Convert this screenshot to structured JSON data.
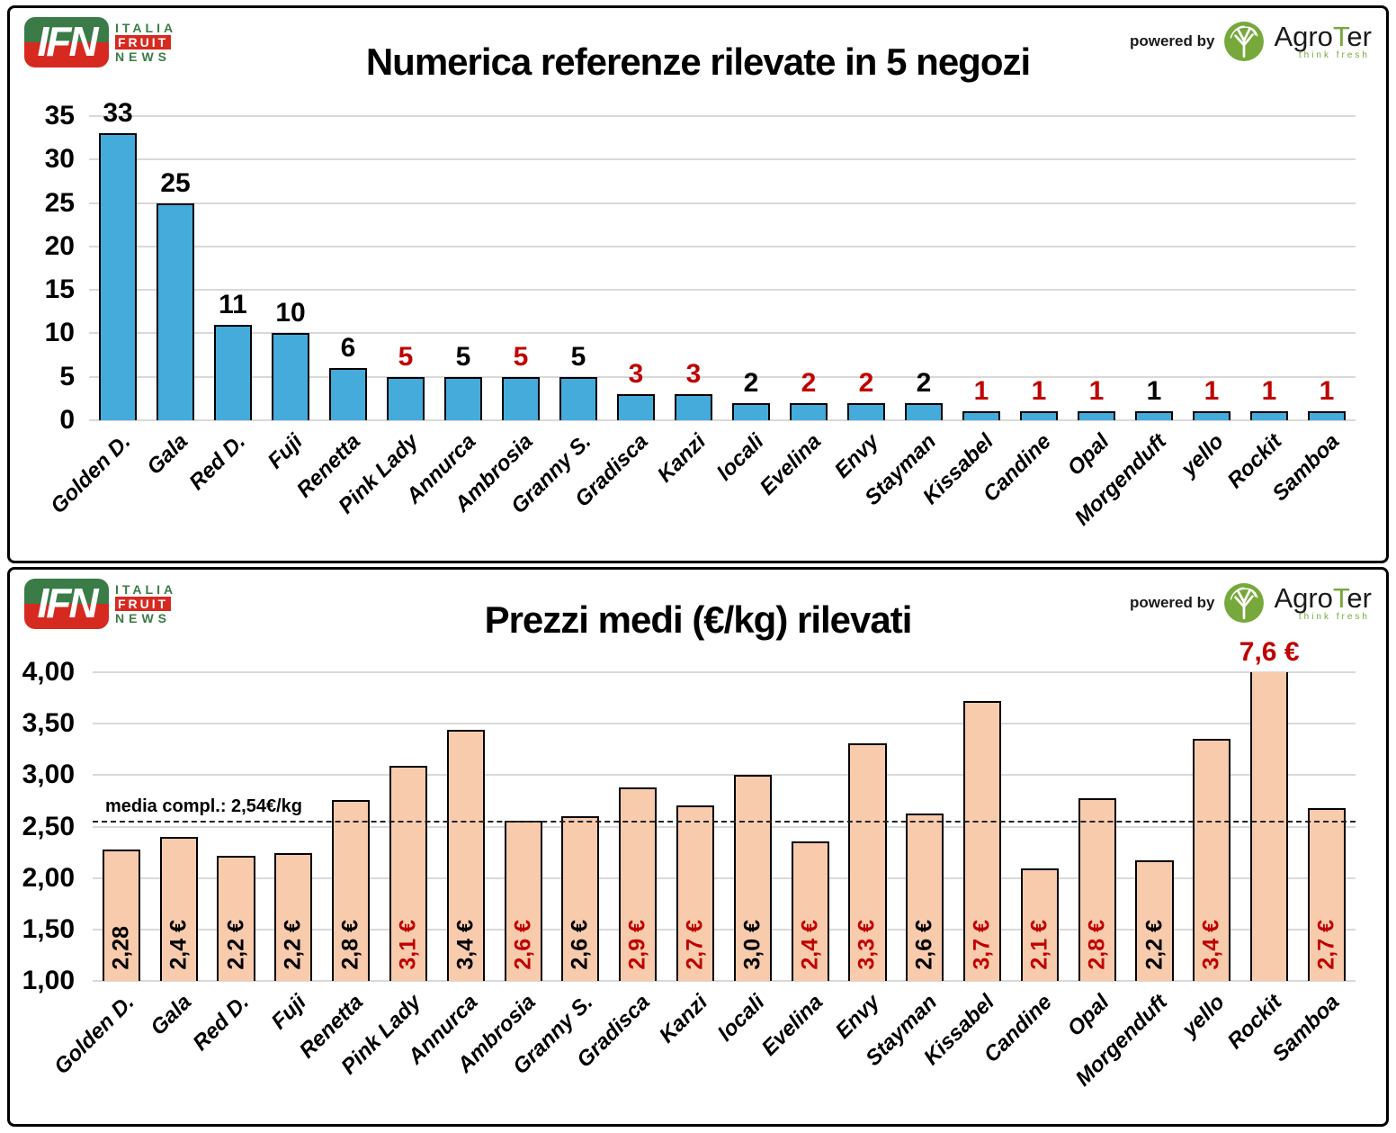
{
  "header": {
    "ifn_logo": {
      "monogram": "IFN",
      "line1": "ITALIA",
      "line2": "FRUIT",
      "line3": "NEWS"
    },
    "powered_by": "powered by",
    "agroter": {
      "prefix": "Agro",
      "accent": "T",
      "suffix": "er",
      "tagline": "think fresh"
    }
  },
  "colors": {
    "count_bar": "#45ABDB",
    "price_bar": "#F8CBAD",
    "bar_border": "#000000",
    "red_label": "#C00000",
    "black_label": "#000000",
    "gridline": "#D9D9D9",
    "ifn_green": "#3A7B47",
    "ifn_red": "#D62A21",
    "agroter_green": "#76A83B"
  },
  "chart_data": [
    {
      "type": "bar",
      "title": "Numerica referenze rilevate in 5 negozi",
      "xlabel": "",
      "ylabel": "",
      "ylim": [
        0,
        35
      ],
      "ytick_values": [
        0,
        5,
        10,
        15,
        20,
        25,
        30,
        35
      ],
      "ytick_labels": [
        "0",
        "5",
        "10",
        "15",
        "20",
        "25",
        "30",
        "35"
      ],
      "grid": true,
      "legend": "none",
      "bar_color": "#45ABDB",
      "label_position": "outside",
      "categories": [
        "Golden D.",
        "Gala",
        "Red D.",
        "Fuji",
        "Renetta",
        "Pink Lady",
        "Annurca",
        "Ambrosia",
        "Granny S.",
        "Gradisca",
        "Kanzi",
        "locali",
        "Evelina",
        "Envy",
        "Stayman",
        "Kissabel",
        "Candine",
        "Opal",
        "Morgenduft",
        "yello",
        "Rockit",
        "Samboa"
      ],
      "bars": [
        {
          "category": "Golden D.",
          "value": 33,
          "label": "33",
          "highlight": false
        },
        {
          "category": "Gala",
          "value": 25,
          "label": "25",
          "highlight": false
        },
        {
          "category": "Red D.",
          "value": 11,
          "label": "11",
          "highlight": false
        },
        {
          "category": "Fuji",
          "value": 10,
          "label": "10",
          "highlight": false
        },
        {
          "category": "Renetta",
          "value": 6,
          "label": "6",
          "highlight": false
        },
        {
          "category": "Pink Lady",
          "value": 5,
          "label": "5",
          "highlight": true
        },
        {
          "category": "Annurca",
          "value": 5,
          "label": "5",
          "highlight": false
        },
        {
          "category": "Ambrosia",
          "value": 5,
          "label": "5",
          "highlight": true
        },
        {
          "category": "Granny S.",
          "value": 5,
          "label": "5",
          "highlight": false
        },
        {
          "category": "Gradisca",
          "value": 3,
          "label": "3",
          "highlight": true
        },
        {
          "category": "Kanzi",
          "value": 3,
          "label": "3",
          "highlight": true
        },
        {
          "category": "locali",
          "value": 2,
          "label": "2",
          "highlight": false
        },
        {
          "category": "Evelina",
          "value": 2,
          "label": "2",
          "highlight": true
        },
        {
          "category": "Envy",
          "value": 2,
          "label": "2",
          "highlight": true
        },
        {
          "category": "Stayman",
          "value": 2,
          "label": "2",
          "highlight": false
        },
        {
          "category": "Kissabel",
          "value": 1,
          "label": "1",
          "highlight": true
        },
        {
          "category": "Candine",
          "value": 1,
          "label": "1",
          "highlight": true
        },
        {
          "category": "Opal",
          "value": 1,
          "label": "1",
          "highlight": true
        },
        {
          "category": "Morgenduft",
          "value": 1,
          "label": "1",
          "highlight": false
        },
        {
          "category": "yello",
          "value": 1,
          "label": "1",
          "highlight": true
        },
        {
          "category": "Rockit",
          "value": 1,
          "label": "1",
          "highlight": true
        },
        {
          "category": "Samboa",
          "value": 1,
          "label": "1",
          "highlight": true
        }
      ]
    },
    {
      "type": "bar",
      "title": "Prezzi medi (€/kg) rilevati",
      "xlabel": "",
      "ylabel": "",
      "ylim": [
        1,
        4
      ],
      "ytick_values": [
        1,
        1.5,
        2,
        2.5,
        3,
        3.5,
        4
      ],
      "ytick_labels": [
        "1,00",
        "1,50",
        "2,00",
        "2,50",
        "3,00",
        "3,50",
        "4,00"
      ],
      "grid": true,
      "legend": "none",
      "bar_color": "#F8CBAD",
      "label_position": "inside",
      "reference_line": {
        "value": 2.54,
        "label": "media compl.: 2,54€/kg"
      },
      "categories": [
        "Golden D.",
        "Gala",
        "Red D.",
        "Fuji",
        "Renetta",
        "Pink Lady",
        "Annurca",
        "Ambrosia",
        "Granny S.",
        "Gradisca",
        "Kanzi",
        "locali",
        "Evelina",
        "Envy",
        "Stayman",
        "Kissabel",
        "Candine",
        "Opal",
        "Morgenduft",
        "yello",
        "Rockit",
        "Samboa"
      ],
      "bars": [
        {
          "category": "Golden D.",
          "value": 2.28,
          "label": "2,28",
          "highlight": false
        },
        {
          "category": "Gala",
          "value": 2.4,
          "label": "2,4 €",
          "highlight": false
        },
        {
          "category": "Red D.",
          "value": 2.22,
          "label": "2,2 €",
          "highlight": false
        },
        {
          "category": "Fuji",
          "value": 2.24,
          "label": "2,2 €",
          "highlight": false
        },
        {
          "category": "Renetta",
          "value": 2.76,
          "label": "2,8 €",
          "highlight": false
        },
        {
          "category": "Pink Lady",
          "value": 3.09,
          "label": "3,1 €",
          "highlight": true
        },
        {
          "category": "Annurca",
          "value": 3.44,
          "label": "3,4 €",
          "highlight": false
        },
        {
          "category": "Ambrosia",
          "value": 2.56,
          "label": "2,6 €",
          "highlight": true
        },
        {
          "category": "Granny S.",
          "value": 2.6,
          "label": "2,6 €",
          "highlight": false
        },
        {
          "category": "Gradisca",
          "value": 2.88,
          "label": "2,9 €",
          "highlight": true
        },
        {
          "category": "Kanzi",
          "value": 2.71,
          "label": "2,7 €",
          "highlight": true
        },
        {
          "category": "locali",
          "value": 3.0,
          "label": "3,0 €",
          "highlight": false
        },
        {
          "category": "Evelina",
          "value": 2.36,
          "label": "2,4 €",
          "highlight": true
        },
        {
          "category": "Envy",
          "value": 3.31,
          "label": "3,3 €",
          "highlight": true
        },
        {
          "category": "Stayman",
          "value": 2.63,
          "label": "2,6 €",
          "highlight": false
        },
        {
          "category": "Kissabel",
          "value": 3.72,
          "label": "3,7 €",
          "highlight": true
        },
        {
          "category": "Candine",
          "value": 2.09,
          "label": "2,1 €",
          "highlight": true
        },
        {
          "category": "Opal",
          "value": 2.78,
          "label": "2,8 €",
          "highlight": true
        },
        {
          "category": "Morgenduft",
          "value": 2.17,
          "label": "2,2 €",
          "highlight": false
        },
        {
          "category": "yello",
          "value": 3.35,
          "label": "3,4 €",
          "highlight": true
        },
        {
          "category": "Rockit",
          "value": 4.0,
          "display_value": 7.6,
          "label": "7,6 €",
          "highlight": true,
          "label_outside": true,
          "clipped": true
        },
        {
          "category": "Samboa",
          "value": 2.68,
          "label": "2,7 €",
          "highlight": true
        }
      ]
    }
  ]
}
